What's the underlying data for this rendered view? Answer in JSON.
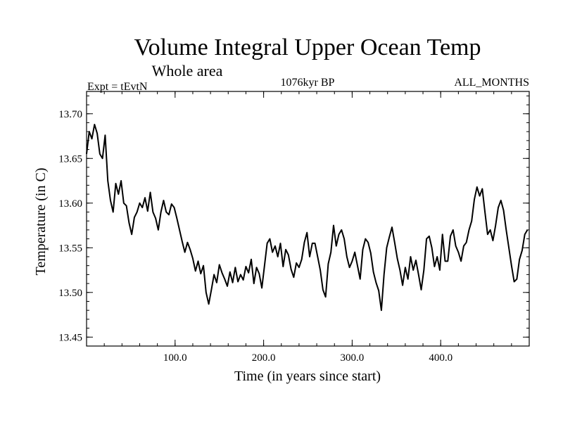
{
  "chart_data": {
    "type": "line",
    "title": "Volume Integral Upper Ocean Temp",
    "subtitle": "Whole area",
    "experiment": "Expt = tEvtN",
    "period": "1076kyr BP",
    "months": "ALL_MONTHS",
    "xlabel": "Time (in years since start)",
    "ylabel": "Temperature (in C)",
    "xlim": [
      0,
      500
    ],
    "ylim": [
      13.44,
      13.725
    ],
    "xticks": [
      100,
      200,
      300,
      400
    ],
    "xtick_labels": [
      "100.0",
      "200.0",
      "300.0",
      "400.0"
    ],
    "yticks": [
      13.45,
      13.5,
      13.55,
      13.6,
      13.65,
      13.7
    ],
    "ytick_labels": [
      "13.45",
      "13.50",
      "13.55",
      "13.60",
      "13.65",
      "13.70"
    ],
    "series": [
      {
        "name": "Temperature",
        "color": "#000000",
        "x": [
          0,
          3,
          6,
          9,
          12,
          15,
          18,
          21,
          24,
          27,
          30,
          33,
          36,
          39,
          42,
          45,
          48,
          51,
          54,
          57,
          60,
          63,
          66,
          69,
          72,
          75,
          78,
          81,
          84,
          87,
          90,
          93,
          96,
          99,
          102,
          105,
          108,
          111,
          114,
          117,
          120,
          123,
          126,
          129,
          132,
          135,
          138,
          141,
          144,
          147,
          150,
          153,
          156,
          159,
          162,
          165,
          168,
          171,
          174,
          177,
          180,
          183,
          186,
          189,
          192,
          195,
          198,
          201,
          204,
          207,
          210,
          213,
          216,
          219,
          222,
          225,
          228,
          231,
          234,
          237,
          240,
          243,
          246,
          249,
          252,
          255,
          258,
          261,
          264,
          267,
          270,
          273,
          276,
          279,
          282,
          285,
          288,
          291,
          294,
          297,
          300,
          303,
          306,
          309,
          312,
          315,
          318,
          321,
          324,
          327,
          330,
          333,
          336,
          339,
          342,
          345,
          348,
          351,
          354,
          357,
          360,
          363,
          366,
          369,
          372,
          375,
          378,
          381,
          384,
          387,
          390,
          393,
          396,
          399,
          402,
          405,
          408,
          411,
          414,
          417,
          420,
          423,
          426,
          429,
          432,
          435,
          438,
          441,
          444,
          447,
          450,
          453,
          456,
          459,
          462,
          465,
          468,
          471,
          474,
          477,
          480,
          483,
          486,
          489,
          492,
          495,
          498
        ],
        "values": [
          13.655,
          13.68,
          13.672,
          13.688,
          13.678,
          13.655,
          13.65,
          13.676,
          13.625,
          13.603,
          13.59,
          13.622,
          13.61,
          13.625,
          13.6,
          13.597,
          13.578,
          13.565,
          13.584,
          13.59,
          13.6,
          13.595,
          13.606,
          13.591,
          13.612,
          13.59,
          13.583,
          13.57,
          13.59,
          13.603,
          13.59,
          13.587,
          13.599,
          13.595,
          13.583,
          13.57,
          13.557,
          13.545,
          13.556,
          13.548,
          13.538,
          13.524,
          13.535,
          13.521,
          13.53,
          13.5,
          13.487,
          13.503,
          13.52,
          13.511,
          13.531,
          13.522,
          13.515,
          13.507,
          13.523,
          13.511,
          13.528,
          13.512,
          13.52,
          13.514,
          13.529,
          13.522,
          13.537,
          13.51,
          13.528,
          13.521,
          13.505,
          13.53,
          13.555,
          13.56,
          13.545,
          13.552,
          13.54,
          13.555,
          13.529,
          13.548,
          13.542,
          13.526,
          13.517,
          13.533,
          13.528,
          13.537,
          13.556,
          13.567,
          13.54,
          13.555,
          13.555,
          13.54,
          13.525,
          13.503,
          13.495,
          13.532,
          13.545,
          13.575,
          13.552,
          13.565,
          13.57,
          13.56,
          13.54,
          13.528,
          13.535,
          13.545,
          13.53,
          13.515,
          13.548,
          13.56,
          13.556,
          13.544,
          13.523,
          13.511,
          13.502,
          13.48,
          13.52,
          13.55,
          13.562,
          13.573,
          13.556,
          13.538,
          13.525,
          13.508,
          13.528,
          13.515,
          13.54,
          13.525,
          13.536,
          13.52,
          13.503,
          13.525,
          13.56,
          13.563,
          13.55,
          13.529,
          13.54,
          13.525,
          13.565,
          13.535,
          13.535,
          13.563,
          13.57,
          13.552,
          13.545,
          13.535,
          13.552,
          13.556,
          13.57,
          13.58,
          13.604,
          13.618,
          13.608,
          13.616,
          13.59,
          13.565,
          13.57,
          13.558,
          13.575,
          13.595,
          13.603,
          13.592,
          13.57,
          13.55,
          13.53,
          13.512,
          13.515,
          13.537,
          13.547,
          13.565,
          13.57
        ]
      }
    ]
  }
}
